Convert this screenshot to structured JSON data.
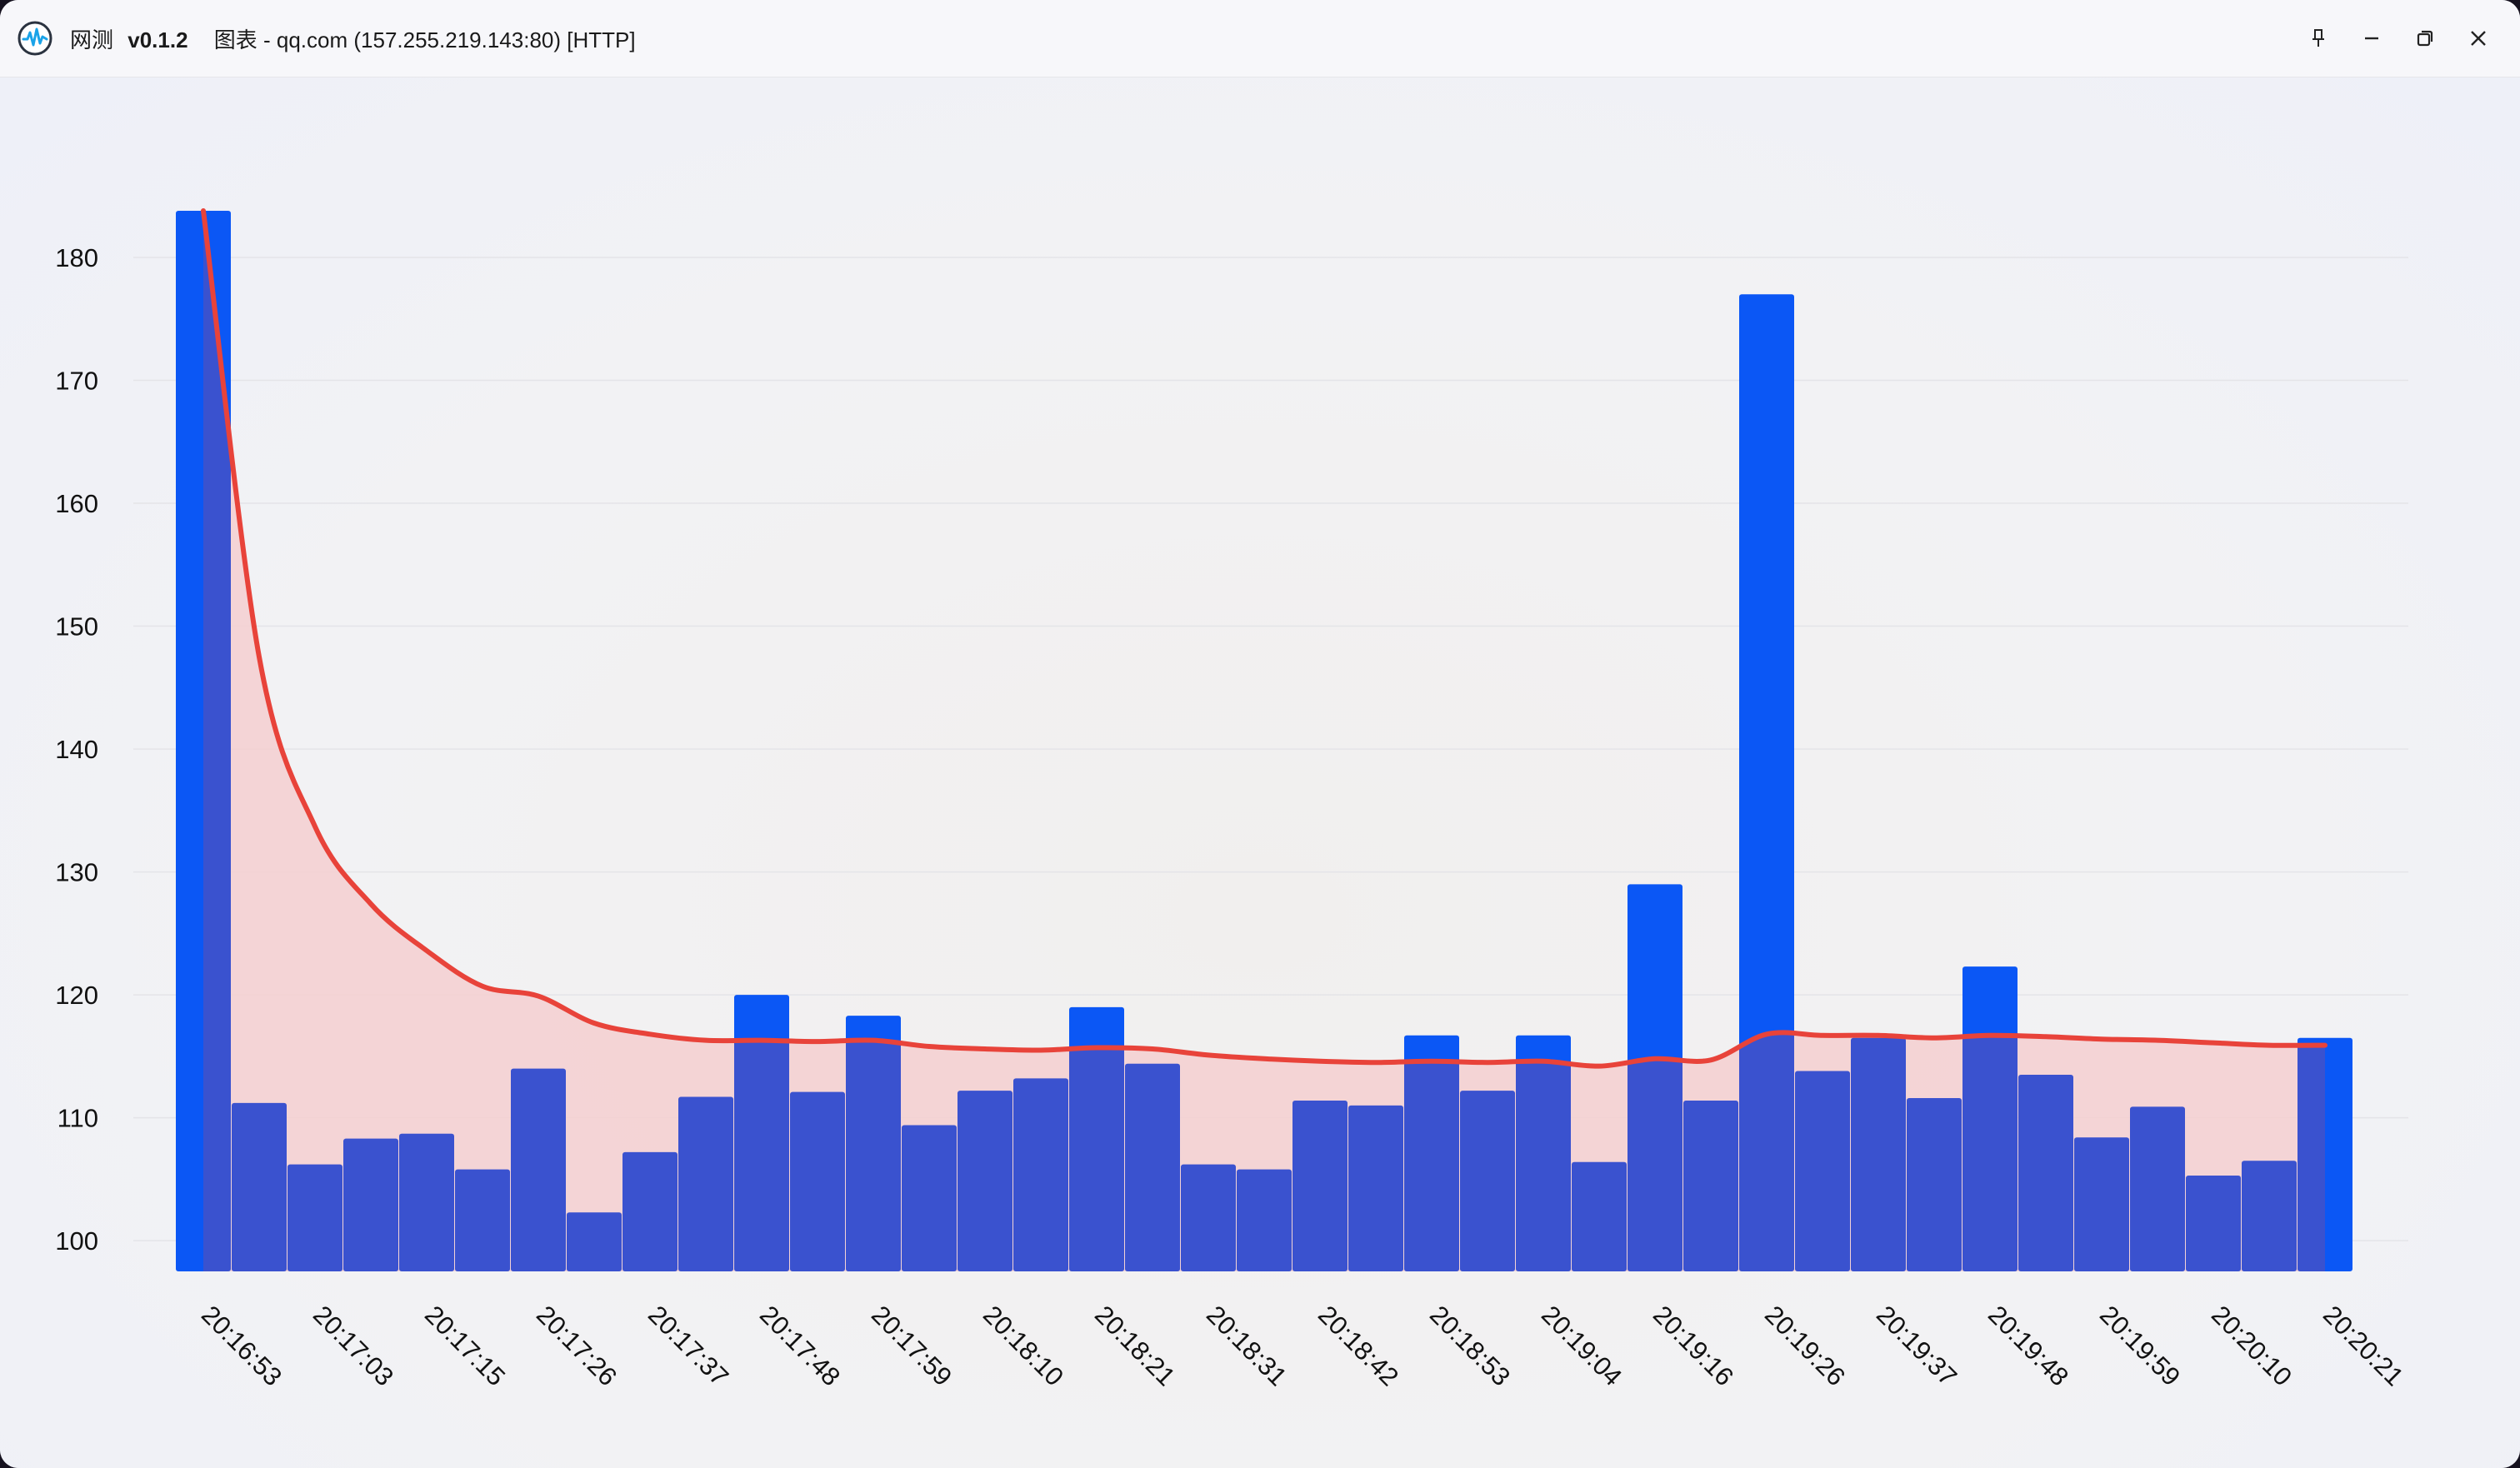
{
  "window": {
    "app_name": "网测",
    "version": "v0.1.2",
    "subtitle": "图表 - qq.com (157.255.219.143:80) [HTTP]",
    "icons": {
      "app": "pulse-logo-icon",
      "pin": "pin-icon",
      "minimize": "minimize-icon",
      "restore": "restore-icon",
      "close": "close-icon"
    }
  },
  "chart_data": {
    "type": "bar",
    "ylim": [
      97.5,
      184
    ],
    "yticks": [
      100,
      110,
      120,
      130,
      140,
      150,
      160,
      170,
      180
    ],
    "x_tick_labels": [
      "20:16:53",
      "20:17:03",
      "20:17:15",
      "20:17:26",
      "20:17:37",
      "20:17:48",
      "20:17:59",
      "20:18:10",
      "20:18:21",
      "20:18:31",
      "20:18:42",
      "20:18:53",
      "20:19:04",
      "20:19:16",
      "20:19:26",
      "20:19:37",
      "20:19:48",
      "20:19:59",
      "20:20:10",
      "20:20:21"
    ],
    "values": [
      183.8,
      111.2,
      106.2,
      108.3,
      108.7,
      105.8,
      114.0,
      102.3,
      107.2,
      111.7,
      120.0,
      112.1,
      118.3,
      109.4,
      112.2,
      113.2,
      119.0,
      114.4,
      106.2,
      105.8,
      111.4,
      111.0,
      116.7,
      112.2,
      116.7,
      106.4,
      129.0,
      111.4,
      177.0,
      113.8,
      116.5,
      111.6,
      122.3,
      113.5,
      108.4,
      110.9,
      105.3,
      106.5,
      116.5
    ],
    "average": [
      183.8,
      147.5,
      133.7,
      127.4,
      123.6,
      120.7,
      119.9,
      117.7,
      116.8,
      116.3,
      116.3,
      116.2,
      116.3,
      115.8,
      115.6,
      115.5,
      115.7,
      115.6,
      115.1,
      114.8,
      114.6,
      114.5,
      114.6,
      114.5,
      114.6,
      114.2,
      114.8,
      114.7,
      116.8,
      116.7,
      116.7,
      116.5,
      116.7,
      116.6,
      116.4,
      116.3,
      116.1,
      115.9,
      115.9
    ],
    "colors": {
      "bar": "#0b57f5",
      "bar_overlap": "#3a52cf",
      "line": "#e8433a",
      "area": "#f5cfd0",
      "grid": "#e4e4e8",
      "tick_text": "#111111"
    },
    "grid": true,
    "legend": "none"
  }
}
